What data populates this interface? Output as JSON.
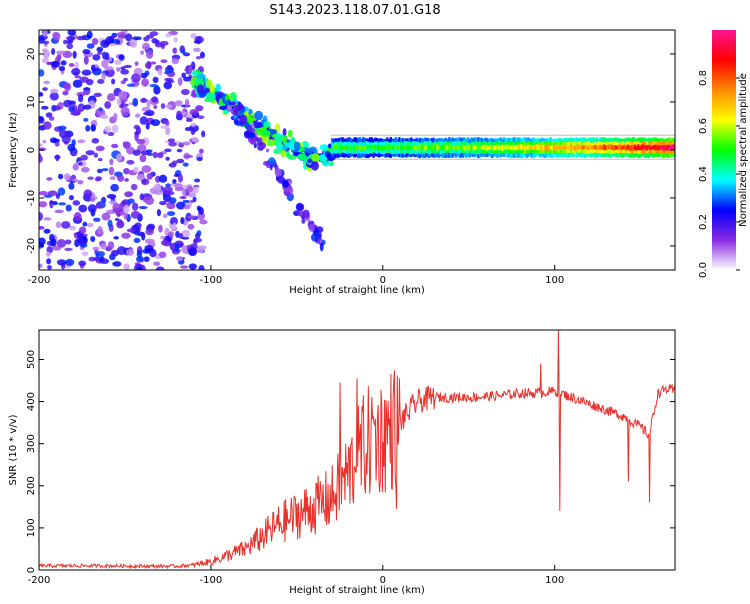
{
  "figure_title": "S143.2023.118.07.01.G18",
  "chart_data": [
    {
      "type": "heatmap",
      "xlabel": "Height of straight line (km)",
      "ylabel": "Frequency (Hz)",
      "xlim": [
        -200,
        170
      ],
      "ylim": [
        -25,
        25
      ],
      "x_ticks": [
        -200,
        -100,
        0,
        100
      ],
      "y_ticks": [
        -20,
        -10,
        0,
        10,
        20
      ],
      "grid": false,
      "colorbar": {
        "label": "Normalized spectral amplitude",
        "range": [
          0,
          1
        ],
        "ticks": [
          0.0,
          0.2,
          0.4,
          0.6,
          0.8
        ],
        "tick_labels": [
          "0.0",
          "0.2",
          "0.4",
          "0.6",
          "0.8"
        ],
        "colors": [
          "#ffffff",
          "#8a2be2",
          "#0000ff",
          "#00ffff",
          "#00ff00",
          "#ffff00",
          "#ff8800",
          "#ff0000",
          "#ff1493"
        ]
      },
      "features": {
        "noise_region": {
          "x_range": [
            -200,
            -110
          ],
          "y_range": [
            -25,
            25
          ],
          "amplitude": 0.15
        },
        "scatter_band_1": {
          "x": [
            -110,
            -90,
            -70,
            -50,
            -40,
            -30
          ],
          "y": [
            14,
            10,
            4,
            0,
            -2,
            -1
          ],
          "amplitude": 0.3
        },
        "scatter_band_2": {
          "x": [
            -90,
            -70,
            -55,
            -45,
            -35
          ],
          "y": [
            10,
            0,
            -8,
            -14,
            -19
          ],
          "amplitude": 0.15
        },
        "stable_line": {
          "x_range": [
            -30,
            170
          ],
          "y": 0.5,
          "amplitude_start": 0.5,
          "amplitude_end": 0.95
        }
      }
    },
    {
      "type": "line",
      "xlabel": "Height of straight line (km)",
      "ylabel": "SNR (10 * v/v)",
      "xlim": [
        -200,
        170
      ],
      "ylim": [
        0,
        570
      ],
      "x_ticks": [
        -200,
        -100,
        0,
        100
      ],
      "y_ticks": [
        0,
        100,
        200,
        300,
        400,
        500
      ],
      "grid": false,
      "series": [
        {
          "color": "#e8312a",
          "x": [
            -200,
            -180,
            -160,
            -140,
            -120,
            -110,
            -100,
            -90,
            -80,
            -70,
            -60,
            -50,
            -40,
            -30,
            -20,
            -10,
            0,
            10,
            20,
            30,
            40,
            50,
            60,
            70,
            80,
            90,
            100,
            110,
            120,
            130,
            140,
            150,
            155,
            160,
            165,
            170
          ],
          "y": [
            10,
            10,
            10,
            9,
            9,
            12,
            20,
            35,
            50,
            80,
            110,
            130,
            150,
            170,
            230,
            300,
            320,
            350,
            400,
            410,
            410,
            410,
            412,
            415,
            420,
            420,
            425,
            410,
            395,
            380,
            365,
            340,
            320,
            420,
            430,
            425
          ],
          "noise_spikes": [
            {
              "x": -25,
              "y": 445
            },
            {
              "x": -15,
              "y": 455
            },
            {
              "x": -5,
              "y": 350
            },
            {
              "x": 8,
              "y": 145
            },
            {
              "x": 92,
              "y": 490
            },
            {
              "x": 102,
              "y": 570
            },
            {
              "x": 103,
              "y": 140
            },
            {
              "x": 143,
              "y": 210
            },
            {
              "x": 155,
              "y": 160
            }
          ]
        }
      ]
    }
  ]
}
